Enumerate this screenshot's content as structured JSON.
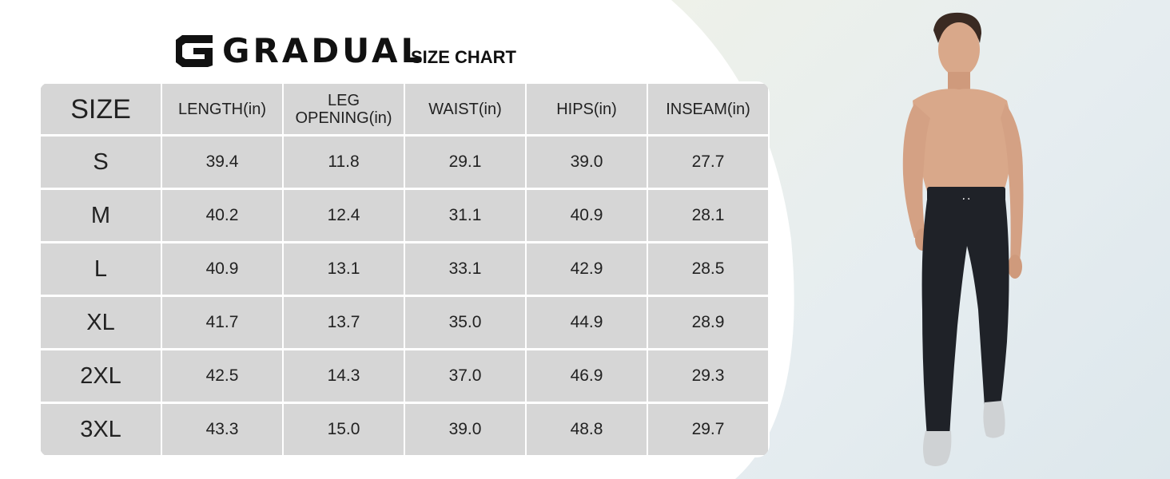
{
  "brand": {
    "name": "GRADUAL",
    "logo_icon": "gradual-g-logo-icon"
  },
  "chart_title": "SIZE CHART",
  "size_table": {
    "columns": [
      "SIZE",
      "LENGTH(in)",
      "LEG\nOPENING(in)",
      "WAIST(in)",
      "HIPS(in)",
      "INSEAM(in)"
    ],
    "rows": [
      [
        "S",
        "39.4",
        "11.8",
        "29.1",
        "39.0",
        "27.7"
      ],
      [
        "M",
        "40.2",
        "12.4",
        "31.1",
        "40.9",
        "28.1"
      ],
      [
        "L",
        "40.9",
        "13.1",
        "33.1",
        "42.9",
        "28.5"
      ],
      [
        "XL",
        "41.7",
        "13.7",
        "35.0",
        "44.9",
        "28.9"
      ],
      [
        "2XL",
        "42.5",
        "14.3",
        "37.0",
        "46.9",
        "29.3"
      ],
      [
        "3XL",
        "43.3",
        "15.0",
        "39.0",
        "48.8",
        "29.7"
      ]
    ]
  },
  "model_photo": {
    "icon": "model-in-joggers-icon",
    "pants_color": "#1f2228",
    "skin_color": "#d9a88a",
    "shoe_color": "#cfd2d4"
  },
  "colors": {
    "cell_background": "#d6d6d6",
    "text": "#222222",
    "backdrop": "#e8eef0"
  }
}
